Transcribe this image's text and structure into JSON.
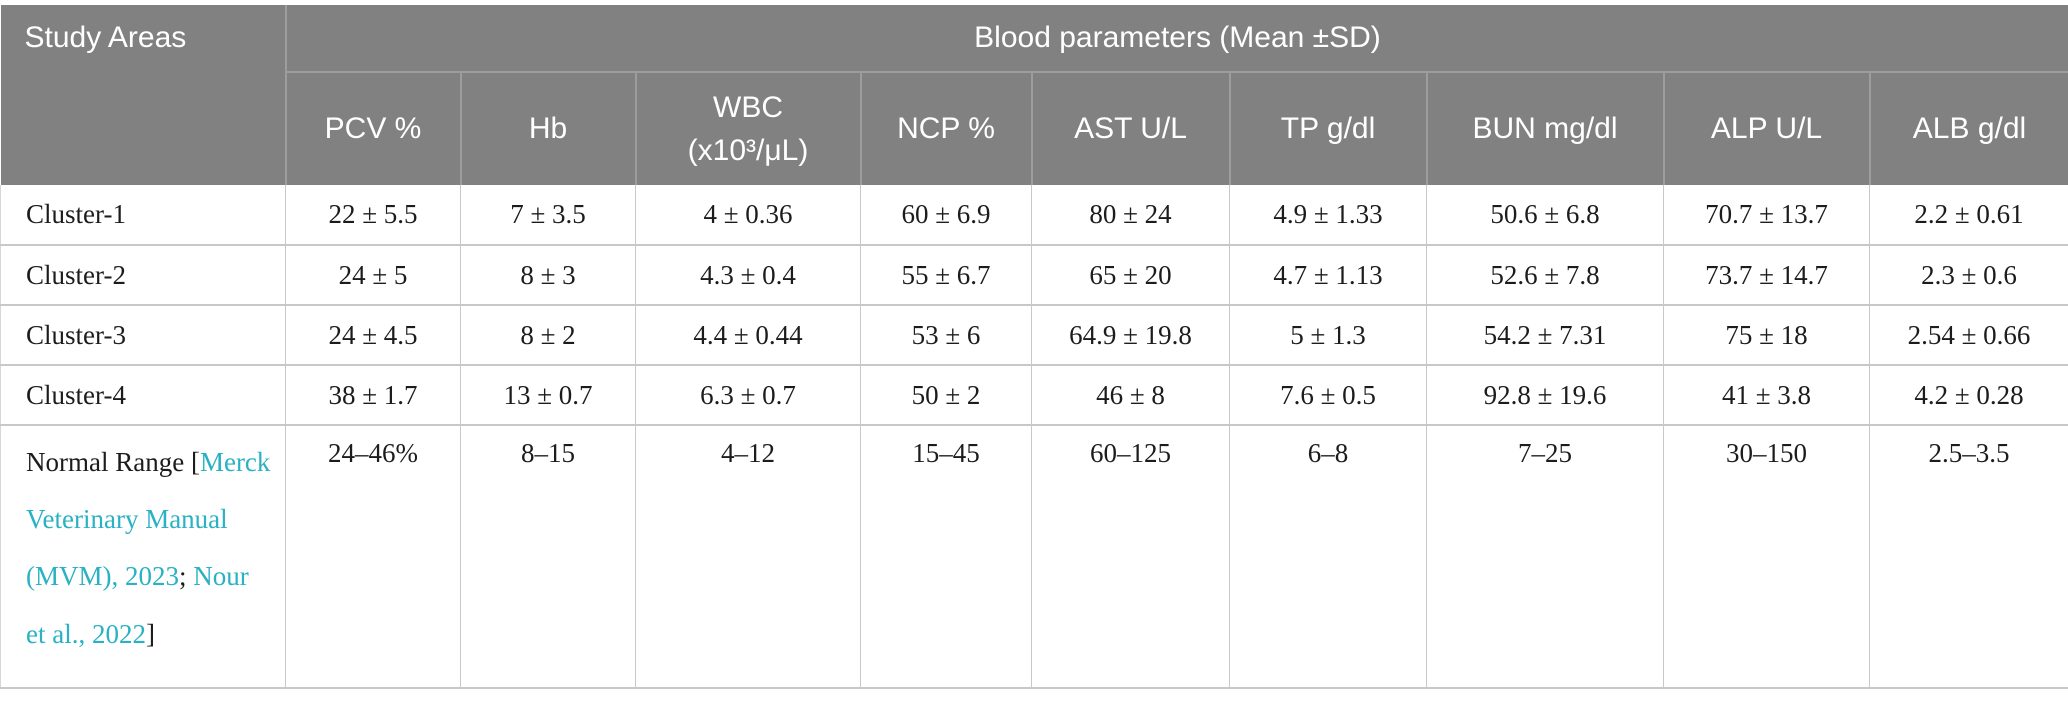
{
  "table": {
    "corner_header": "Study Areas",
    "group_header": "Blood parameters (Mean ±SD)",
    "columns": [
      {
        "lines": [
          "PCV %"
        ]
      },
      {
        "lines": [
          "Hb"
        ]
      },
      {
        "lines": [
          "WBC",
          "(x10³/μL)"
        ]
      },
      {
        "lines": [
          "NCP %"
        ]
      },
      {
        "lines": [
          "AST U/L"
        ]
      },
      {
        "lines": [
          "TP g/dl"
        ]
      },
      {
        "lines": [
          "BUN mg/dl"
        ]
      },
      {
        "lines": [
          "ALP U/L"
        ]
      },
      {
        "lines": [
          "ALB g/dl"
        ]
      }
    ],
    "rows": [
      {
        "label": "Cluster-1",
        "values": [
          "22 ± 5.5",
          "7 ± 3.5",
          "4 ± 0.36",
          "60 ± 6.9",
          "80 ± 24",
          "4.9 ± 1.33",
          "50.6 ± 6.8",
          "70.7 ± 13.7",
          "2.2 ± 0.61"
        ]
      },
      {
        "label": "Cluster-2",
        "values": [
          "24 ± 5",
          "8 ± 3",
          "4.3 ± 0.4",
          "55 ± 6.7",
          "65 ± 20",
          "4.7 ± 1.13",
          "52.6 ± 7.8",
          "73.7 ± 14.7",
          "2.3 ± 0.6"
        ]
      },
      {
        "label": "Cluster-3",
        "values": [
          "24 ± 4.5",
          "8 ± 2",
          "4.4 ± 0.44",
          "53 ± 6",
          "64.9 ± 19.8",
          "5 ± 1.3",
          "54.2 ± 7.31",
          "75 ± 18",
          "2.54 ± 0.66"
        ]
      },
      {
        "label": "Cluster-4",
        "values": [
          "38 ± 1.7",
          "13 ± 0.7",
          "6.3 ± 0.7",
          "50 ± 2",
          "46 ± 8",
          "7.6 ± 0.5",
          "92.8 ± 19.6",
          "41 ± 3.8",
          "4.2 ± 0.28"
        ]
      },
      {
        "label": "Normal Range",
        "citation": {
          "prefix": " [",
          "link1": "Merck Veterinary Manual (MVM), 2023",
          "separator": "; ",
          "link2": "Nour et al., 2022",
          "suffix": "]"
        },
        "values": [
          "24–46%",
          "8–15",
          "4–12",
          "15–45",
          "60–125",
          "6–8",
          "7–25",
          "30–150",
          "2.5–3.5"
        ]
      }
    ],
    "colors": {
      "header_background": "#808180",
      "link_teal": "#29b1c4"
    }
  }
}
